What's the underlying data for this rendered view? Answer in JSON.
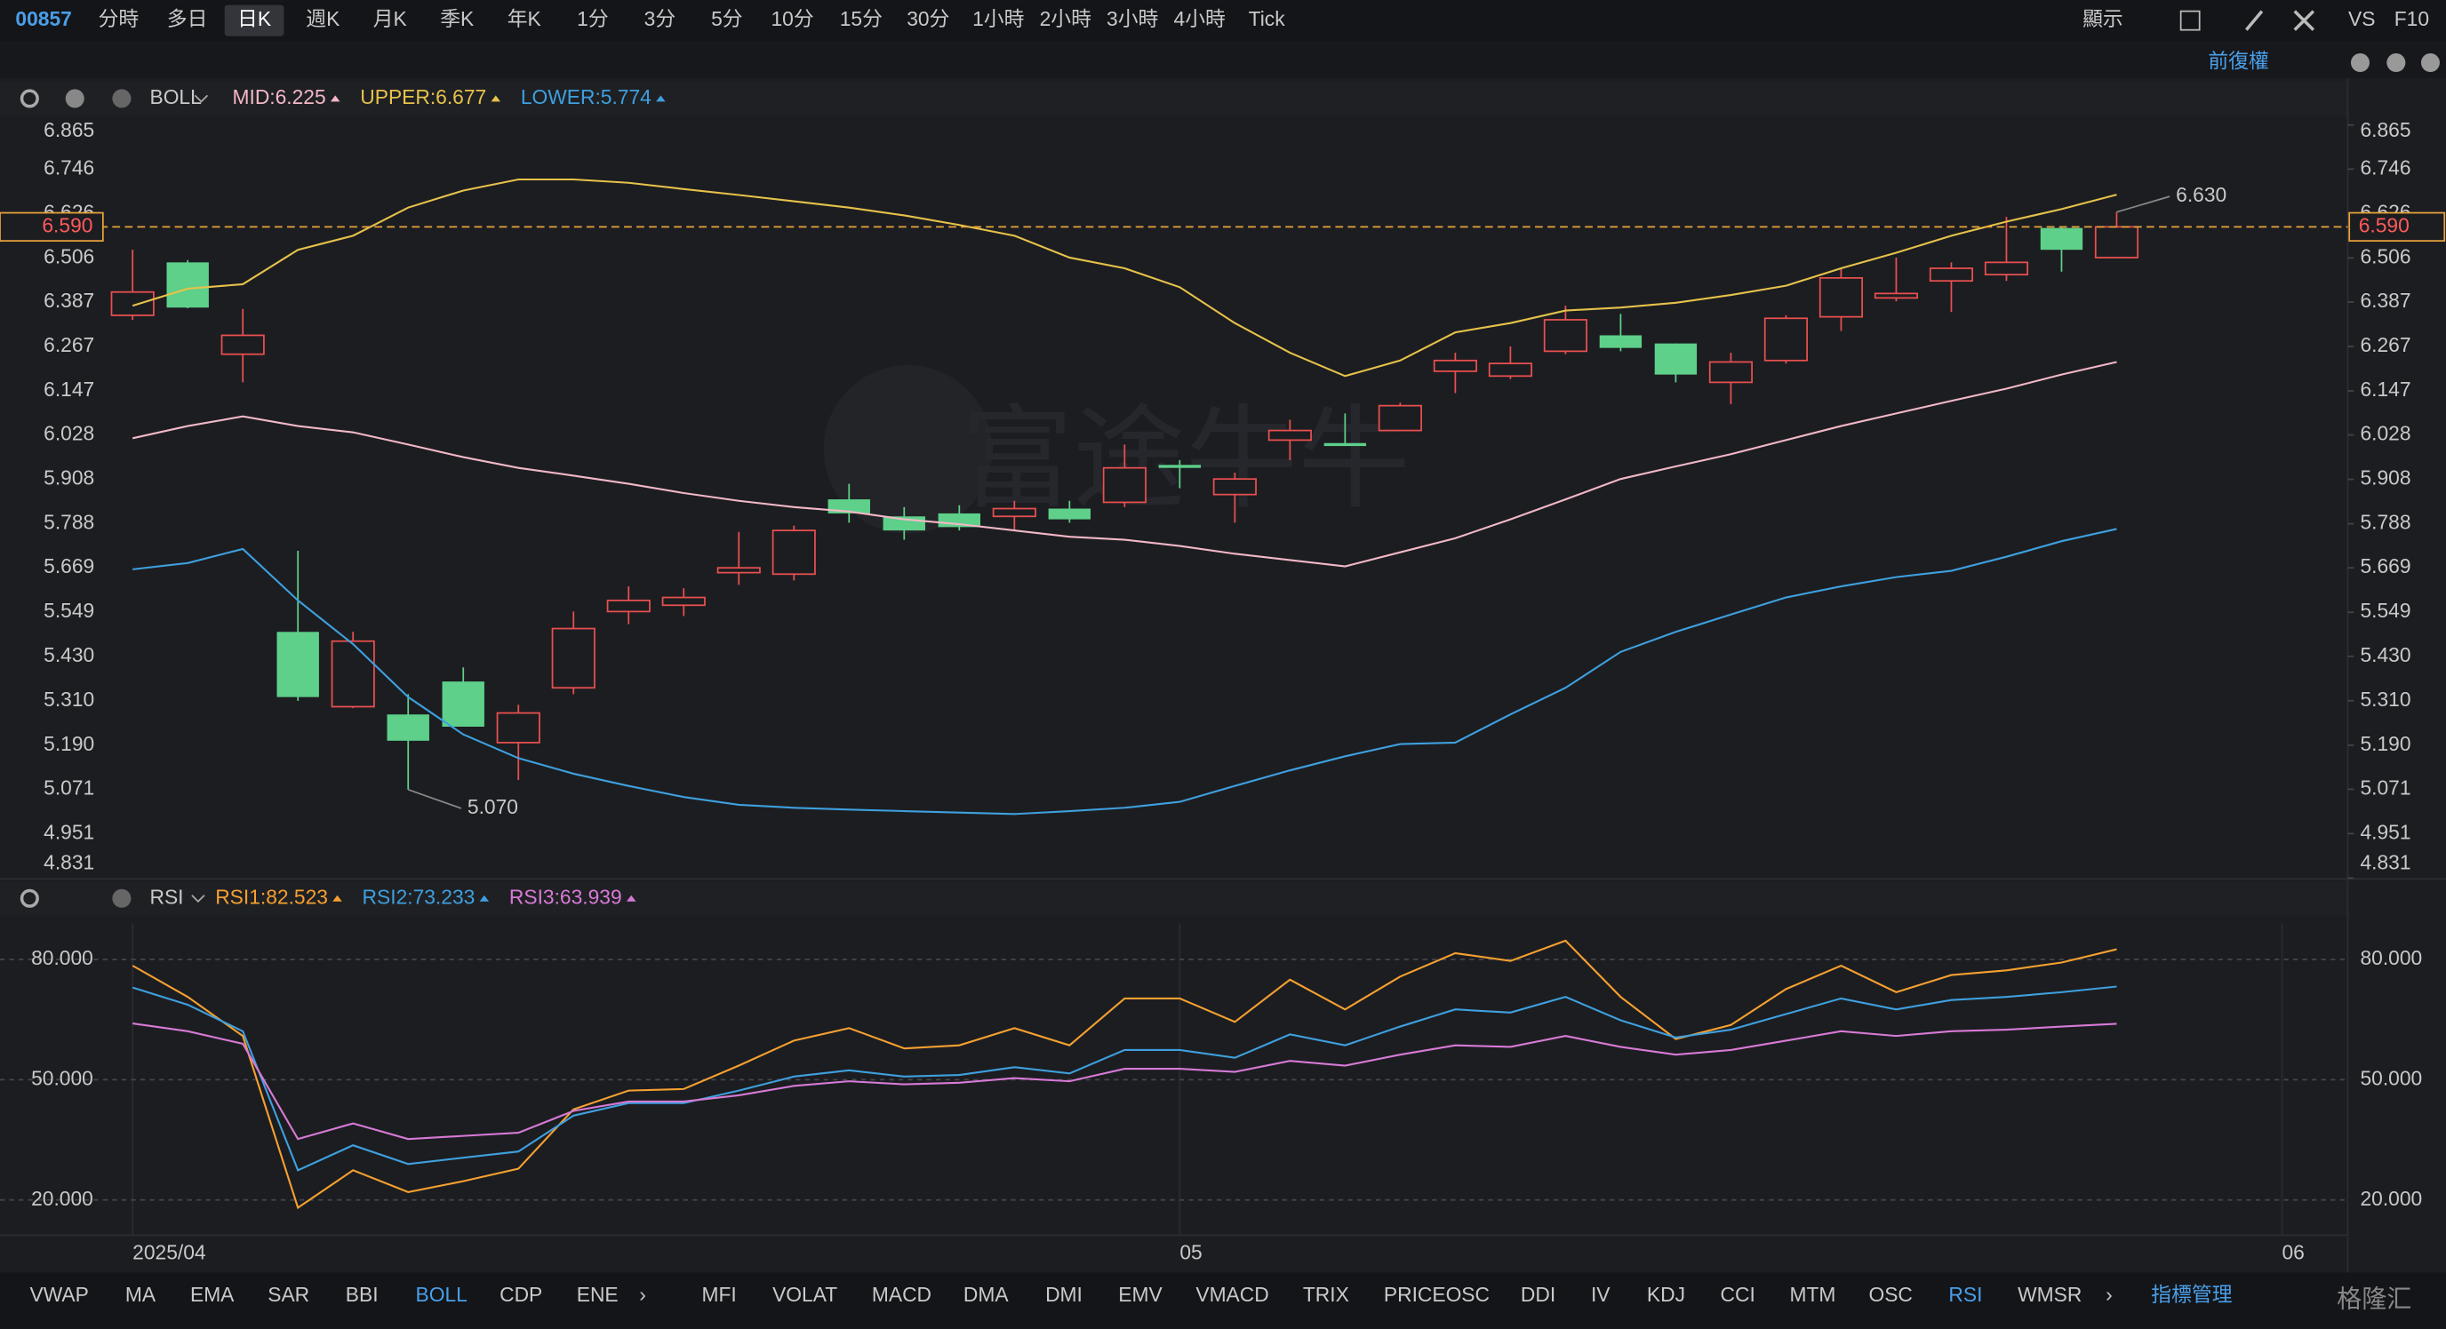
{
  "toolbar": {
    "symbol": "00857",
    "periods": [
      "分時",
      "多日",
      "日K",
      "週K",
      "月K",
      "季K",
      "年K",
      "1分",
      "3分",
      "5分",
      "10分",
      "15分",
      "30分",
      "1小時",
      "2小時",
      "3小時",
      "4小時",
      "Tick"
    ],
    "active": "日K",
    "display": "顯示",
    "vs": "VS",
    "f10": "F10",
    "adjust": "前復權"
  },
  "watermark": "富途牛牛",
  "corner_logo": "格隆汇",
  "indicator_bar": {
    "items": [
      "VWAP",
      "MA",
      "EMA",
      "SAR",
      "BBI",
      "BOLL",
      "CDP",
      "ENE",
      "MFI",
      "VOLAT",
      "MACD",
      "DMA",
      "DMI",
      "EMV",
      "VMACD",
      "TRIX",
      "PRICEOSC",
      "DDI",
      "IV",
      "KDJ",
      "CCI",
      "MTM",
      "OSC",
      "RSI",
      "WMSR"
    ],
    "active": [
      "BOLL",
      "RSI"
    ],
    "manage": "指標管理"
  },
  "chart_data": [
    {
      "type": "candlestick",
      "indicator": "BOLL",
      "up_color": "#e8504f",
      "down_color": "#5ed08a",
      "open": [
        6.351,
        6.494,
        6.246,
        5.496,
        5.294,
        5.273,
        5.362,
        5.197,
        5.345,
        5.551,
        5.568,
        5.656,
        5.652,
        5.854,
        5.808,
        5.816,
        5.808,
        5.829,
        5.846,
        5.947,
        5.867,
        6.014,
        6.006,
        6.04,
        6.2,
        6.187,
        6.254,
        6.297,
        6.275,
        6.17,
        6.229,
        6.347,
        6.398,
        6.444,
        6.461,
        6.587,
        6.507
      ],
      "high": [
        6.528,
        6.5,
        6.368,
        5.715,
        5.496,
        5.328,
        5.4,
        5.299,
        5.551,
        5.619,
        5.614,
        5.766,
        5.783,
        5.896,
        5.833,
        5.838,
        5.85,
        5.85,
        6.002,
        5.96,
        5.926,
        6.069,
        6.086,
        6.115,
        6.25,
        6.267,
        6.377,
        6.355,
        6.275,
        6.25,
        6.351,
        6.478,
        6.507,
        6.494,
        6.617,
        6.59,
        6.63
      ],
      "low": [
        6.339,
        6.37,
        6.17,
        5.31,
        5.29,
        5.07,
        5.24,
        5.096,
        5.328,
        5.517,
        5.539,
        5.623,
        5.635,
        5.791,
        5.745,
        5.77,
        5.77,
        5.791,
        5.833,
        5.884,
        5.791,
        5.96,
        5.998,
        6.04,
        6.141,
        6.179,
        6.246,
        6.254,
        6.17,
        6.111,
        6.221,
        6.309,
        6.389,
        6.36,
        6.444,
        6.469,
        6.507
      ],
      "close": [
        6.414,
        6.372,
        6.297,
        5.32,
        5.471,
        5.202,
        5.24,
        5.277,
        5.505,
        5.581,
        5.589,
        5.669,
        5.77,
        5.816,
        5.77,
        5.779,
        5.829,
        5.8,
        5.939,
        5.939,
        5.909,
        6.04,
        5.998,
        6.107,
        6.229,
        6.221,
        6.339,
        6.263,
        6.191,
        6.225,
        6.343,
        6.452,
        6.41,
        6.478,
        6.494,
        6.528,
        6.59
      ],
      "series": [
        {
          "name": "MID:6.225",
          "color": "#f2b8c6",
          "values": [
            6.019,
            6.052,
            6.078,
            6.052,
            6.035,
            6.002,
            5.968,
            5.939,
            5.918,
            5.896,
            5.871,
            5.85,
            5.833,
            5.821,
            5.8,
            5.787,
            5.77,
            5.753,
            5.745,
            5.728,
            5.707,
            5.69,
            5.673,
            5.711,
            5.749,
            5.8,
            5.854,
            5.909,
            5.943,
            5.976,
            6.014,
            6.052,
            6.086,
            6.12,
            6.153,
            6.191,
            6.225
          ]
        },
        {
          "name": "UPPER:6.677",
          "color": "#e6c24a",
          "values": [
            6.377,
            6.423,
            6.435,
            6.528,
            6.566,
            6.642,
            6.688,
            6.718,
            6.718,
            6.709,
            6.692,
            6.676,
            6.659,
            6.642,
            6.621,
            6.595,
            6.566,
            6.507,
            6.478,
            6.427,
            6.33,
            6.25,
            6.187,
            6.229,
            6.305,
            6.33,
            6.364,
            6.372,
            6.385,
            6.406,
            6.431,
            6.478,
            6.52,
            6.566,
            6.604,
            6.638,
            6.677
          ]
        },
        {
          "name": "LOWER:5.774",
          "color": "#3ea0de",
          "values": [
            5.665,
            5.682,
            5.72,
            5.581,
            5.463,
            5.32,
            5.219,
            5.155,
            5.113,
            5.08,
            5.05,
            5.029,
            5.021,
            5.016,
            5.012,
            5.008,
            5.004,
            5.012,
            5.021,
            5.037,
            5.08,
            5.122,
            5.16,
            5.193,
            5.197,
            5.273,
            5.345,
            5.442,
            5.496,
            5.543,
            5.589,
            5.619,
            5.644,
            5.661,
            5.699,
            5.741,
            5.774
          ]
        }
      ],
      "ylim": [
        4.831,
        6.865
      ],
      "yticks": [
        6.865,
        6.746,
        6.626,
        6.506,
        6.387,
        6.267,
        6.147,
        6.028,
        5.908,
        5.788,
        5.669,
        5.549,
        {
          "value": 5.43,
          "label": "5.430"
        },
        {
          "value": 5.31,
          "label": "5.310"
        },
        {
          "value": 5.19,
          "label": "5.190"
        },
        5.071,
        4.951,
        4.831
      ],
      "last_price": {
        "value": 6.59,
        "label": "6.590"
      },
      "annotations": [
        {
          "value": 6.63,
          "label": "6.630"
        },
        {
          "value": 5.07,
          "label": "5.070"
        }
      ],
      "xticks": [
        {
          "value": 0,
          "label": "2025/04"
        },
        {
          "value": 19,
          "label": "05"
        },
        {
          "value": 39,
          "label": "06"
        }
      ]
    },
    {
      "type": "line",
      "indicator": "RSI",
      "series": [
        {
          "name": "RSI1:82.523",
          "color": "#f5a030",
          "values": [
            78.44,
            70.65,
            60.91,
            18.06,
            27.41,
            21.96,
            24.68,
            27.8,
            42.6,
            47.28,
            47.67,
            53.51,
            59.74,
            62.86,
            57.8,
            58.57,
            62.86,
            58.57,
            70.26,
            70.26,
            64.42,
            74.94,
            67.53,
            75.71,
            81.56,
            79.61,
            84.67,
            70.65,
            60.13,
            63.64,
            72.6,
            78.44,
            71.82,
            76.1,
            77.27,
            79.22,
            82.523
          ]
        },
        {
          "name": "RSI2:73.233",
          "color": "#3ea0de",
          "values": [
            72.99,
            68.7,
            62.08,
            27.41,
            33.64,
            28.97,
            30.53,
            32.08,
            41.04,
            44.16,
            44.16,
            47.28,
            50.78,
            52.34,
            50.78,
            51.17,
            53.12,
            51.56,
            57.41,
            57.41,
            55.46,
            61.3,
            58.57,
            63.25,
            67.53,
            66.75,
            70.65,
            64.81,
            60.52,
            62.47,
            66.37,
            70.26,
            67.53,
            69.87,
            70.65,
            71.82,
            73.233
          ]
        },
        {
          "name": "RSI3:63.939",
          "color": "#d77ad6",
          "values": [
            64.03,
            62.08,
            58.96,
            35.2,
            39.1,
            35.2,
            35.98,
            36.76,
            42.21,
            44.55,
            44.55,
            46.11,
            48.45,
            49.61,
            48.84,
            49.23,
            50.39,
            49.61,
            52.73,
            52.73,
            51.95,
            54.68,
            53.51,
            56.24,
            58.57,
            58.18,
            60.91,
            58.18,
            56.24,
            57.41,
            59.74,
            62.08,
            60.91,
            62.08,
            62.47,
            63.25,
            63.939
          ]
        }
      ],
      "ylim": [
        12,
        89
      ],
      "yticks": [
        {
          "value": 80,
          "label": "80.000"
        },
        {
          "value": 50,
          "label": "50.000"
        },
        {
          "value": 20,
          "label": "20.000"
        }
      ],
      "grid": true
    }
  ]
}
